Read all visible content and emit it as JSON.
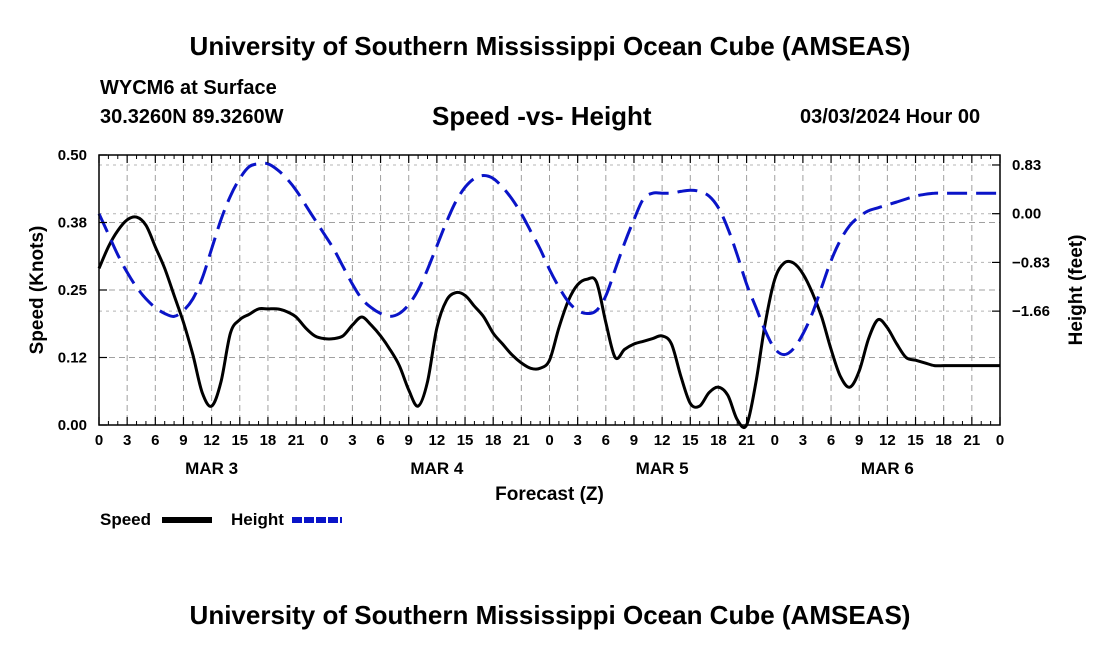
{
  "header": {
    "title": "University of Southern Mississippi Ocean Cube (AMSEAS)",
    "station": "WYCM6 at Surface",
    "coords": "30.3260N  89.3260W",
    "subtitle": "Speed -vs- Height",
    "datetime": "03/03/2024 Hour 00"
  },
  "footer": {
    "title": "University of Southern Mississippi Ocean Cube (AMSEAS)"
  },
  "legend": {
    "speed_label": "Speed",
    "height_label": "Height"
  },
  "chart_data": {
    "type": "line",
    "title": "Speed -vs- Height",
    "xlabel": "Forecast (Z)",
    "ylabel": "Speed (Knots)",
    "y2label": "Height (feet)",
    "xlim": [
      0,
      96
    ],
    "ylim": [
      0,
      0.5
    ],
    "y2lim": [
      -3.6,
      1.0
    ],
    "grid": true,
    "legend_position": "bottom-left",
    "x_ticks": [
      0,
      3,
      6,
      9,
      12,
      15,
      18,
      21,
      24,
      27,
      30,
      33,
      36,
      39,
      42,
      45,
      48,
      51,
      54,
      57,
      60,
      63,
      66,
      69,
      72,
      75,
      78,
      81,
      84,
      87,
      90,
      93,
      96
    ],
    "x_tick_labels": [
      "0",
      "3",
      "6",
      "9",
      "12",
      "15",
      "18",
      "21",
      "0",
      "3",
      "6",
      "9",
      "12",
      "15",
      "18",
      "21",
      "0",
      "3",
      "6",
      "9",
      "12",
      "15",
      "18",
      "21",
      "0",
      "3",
      "6",
      "9",
      "12",
      "15",
      "18",
      "21",
      "0"
    ],
    "day_labels": [
      {
        "x": 12,
        "label": "MAR 3"
      },
      {
        "x": 36,
        "label": "MAR 4"
      },
      {
        "x": 60,
        "label": "MAR 5"
      },
      {
        "x": 84,
        "label": "MAR 6"
      }
    ],
    "y_ticks": [
      0.0,
      0.125,
      0.25,
      0.375,
      0.5
    ],
    "y_tick_labels": [
      "0.00",
      "0.12",
      "0.25",
      "0.38",
      "0.50"
    ],
    "y2_ticks": [
      0.83,
      0.0,
      -0.83,
      -1.66
    ],
    "y2_tick_labels": [
      "0.83",
      "0.00",
      "−0.83",
      "−1.66"
    ],
    "series": [
      {
        "name": "Speed",
        "axis": "left",
        "color": "#000000",
        "dash": "solid",
        "x": [
          0,
          1,
          2,
          3,
          4,
          5,
          6,
          7,
          8,
          9,
          10,
          11,
          12,
          13,
          14,
          15,
          16,
          17,
          18,
          19,
          20,
          21,
          22,
          23,
          24,
          25,
          26,
          27,
          28,
          29,
          30,
          31,
          32,
          33,
          34,
          35,
          36,
          37,
          38,
          39,
          40,
          41,
          42,
          43,
          44,
          45,
          46,
          47,
          48,
          49,
          50,
          51,
          52,
          53,
          54,
          55,
          56,
          57,
          58,
          59,
          60,
          61,
          62,
          63,
          64,
          65,
          66,
          67,
          68,
          69,
          70,
          71,
          72,
          73,
          74,
          75,
          76,
          77,
          78,
          79,
          80,
          81,
          82,
          83,
          84,
          85,
          86,
          87,
          88,
          89,
          90,
          91,
          92,
          93,
          94,
          95,
          96
        ],
        "values": [
          0.29,
          0.33,
          0.36,
          0.38,
          0.385,
          0.37,
          0.33,
          0.29,
          0.24,
          0.19,
          0.13,
          0.06,
          0.035,
          0.08,
          0.17,
          0.195,
          0.205,
          0.215,
          0.215,
          0.215,
          0.21,
          0.2,
          0.18,
          0.165,
          0.16,
          0.16,
          0.165,
          0.185,
          0.2,
          0.185,
          0.165,
          0.14,
          0.11,
          0.065,
          0.035,
          0.08,
          0.18,
          0.23,
          0.245,
          0.24,
          0.22,
          0.2,
          0.17,
          0.15,
          0.13,
          0.115,
          0.105,
          0.105,
          0.12,
          0.18,
          0.23,
          0.26,
          0.27,
          0.265,
          0.19,
          0.125,
          0.14,
          0.15,
          0.155,
          0.16,
          0.165,
          0.15,
          0.09,
          0.04,
          0.035,
          0.06,
          0.07,
          0.055,
          0.01,
          0.0,
          0.08,
          0.19,
          0.27,
          0.3,
          0.3,
          0.28,
          0.245,
          0.2,
          0.14,
          0.09,
          0.07,
          0.1,
          0.16,
          0.195,
          0.18,
          0.15,
          0.125,
          0.12,
          0.115,
          0.11,
          0.11,
          0.11,
          0.11,
          0.11,
          0.11,
          0.11,
          0.11
        ],
        "note": "values read off the graph"
      },
      {
        "name": "Height",
        "axis": "right",
        "color": "#0a14c8",
        "dash": "dashed",
        "x": [
          0,
          1,
          2,
          3,
          4,
          5,
          6,
          7,
          8,
          9,
          10,
          11,
          12,
          13,
          14,
          15,
          16,
          17,
          18,
          19,
          20,
          21,
          22,
          23,
          24,
          25,
          26,
          27,
          28,
          29,
          30,
          31,
          32,
          33,
          34,
          35,
          36,
          37,
          38,
          39,
          40,
          41,
          42,
          43,
          44,
          45,
          46,
          47,
          48,
          49,
          50,
          51,
          52,
          53,
          54,
          55,
          56,
          57,
          58,
          59,
          60,
          61,
          62,
          63,
          64,
          65,
          66,
          67,
          68,
          69,
          70,
          71,
          72,
          73,
          74,
          75,
          76,
          77,
          78,
          79,
          80,
          81,
          82,
          83,
          84,
          85,
          86,
          87,
          88,
          89,
          90,
          91,
          92,
          93,
          94,
          95,
          96
        ],
        "values": [
          0.0,
          -0.35,
          -0.7,
          -1.0,
          -1.25,
          -1.45,
          -1.6,
          -1.7,
          -1.75,
          -1.65,
          -1.45,
          -1.1,
          -0.6,
          -0.1,
          0.3,
          0.6,
          0.8,
          0.85,
          0.85,
          0.75,
          0.6,
          0.4,
          0.15,
          -0.1,
          -0.35,
          -0.6,
          -0.9,
          -1.2,
          -1.45,
          -1.6,
          -1.7,
          -1.75,
          -1.7,
          -1.55,
          -1.3,
          -0.95,
          -0.55,
          -0.15,
          0.2,
          0.45,
          0.6,
          0.65,
          0.6,
          0.45,
          0.25,
          0.0,
          -0.3,
          -0.6,
          -0.95,
          -1.25,
          -1.5,
          -1.65,
          -1.7,
          -1.65,
          -1.4,
          -0.95,
          -0.5,
          -0.1,
          0.25,
          0.35,
          0.35,
          0.35,
          0.38,
          0.4,
          0.38,
          0.3,
          0.1,
          -0.25,
          -0.7,
          -1.2,
          -1.6,
          -2.0,
          -2.3,
          -2.4,
          -2.3,
          -2.05,
          -1.7,
          -1.25,
          -0.8,
          -0.45,
          -0.2,
          -0.05,
          0.05,
          0.1,
          0.15,
          0.2,
          0.25,
          0.3,
          0.33,
          0.35,
          0.35,
          0.35,
          0.35,
          0.35,
          0.35,
          0.35,
          0.35
        ],
        "note": "values read off the graph"
      }
    ]
  }
}
